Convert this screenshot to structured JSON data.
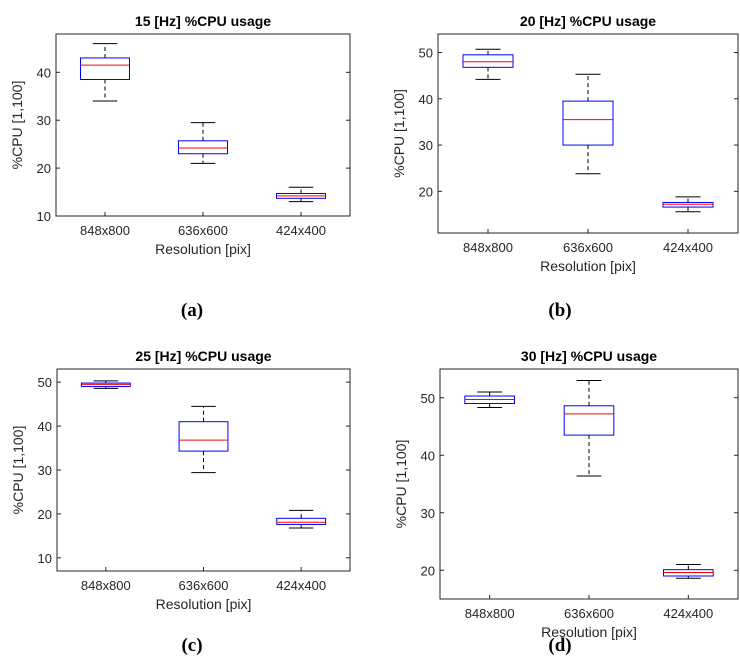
{
  "figure": {
    "colors": {
      "box": "#0000ff",
      "median": "#ff0000",
      "whisker": "#000000",
      "axis": "#262626"
    }
  },
  "chart_data": [
    {
      "type": "box",
      "panel_label": "(a)",
      "title": "15 [Hz] %CPU usage",
      "xlabel": "Resolution [pix]",
      "ylabel": "%CPU [1,100]",
      "ylim": [
        10,
        48
      ],
      "yticks": [
        10,
        20,
        30,
        40
      ],
      "categories": [
        "848x800",
        "636x600",
        "424x400"
      ],
      "boxes": [
        {
          "whisker_low": 34,
          "q1": 38.5,
          "median": 41.5,
          "q3": 43,
          "whisker_high": 46
        },
        {
          "whisker_low": 21,
          "q1": 23,
          "median": 24.2,
          "q3": 25.7,
          "whisker_high": 29.5
        },
        {
          "whisker_low": 13,
          "q1": 13.7,
          "median": 14.2,
          "q3": 14.7,
          "whisker_high": 16
        }
      ]
    },
    {
      "type": "box",
      "panel_label": "(b)",
      "title": "20 [Hz] %CPU usage",
      "xlabel": "Resolution [pix]",
      "ylabel": "%CPU [1,100]",
      "ylim": [
        11,
        54
      ],
      "yticks": [
        20,
        30,
        40,
        50
      ],
      "categories": [
        "848x800",
        "636x600",
        "424x400"
      ],
      "boxes": [
        {
          "whisker_low": 44.2,
          "q1": 46.8,
          "median": 48,
          "q3": 49.5,
          "whisker_high": 50.7
        },
        {
          "whisker_low": 23.8,
          "q1": 30,
          "median": 35.5,
          "q3": 39.5,
          "whisker_high": 45.3
        },
        {
          "whisker_low": 15.6,
          "q1": 16.6,
          "median": 17.2,
          "q3": 17.6,
          "whisker_high": 18.8
        }
      ]
    },
    {
      "type": "box",
      "panel_label": "(c)",
      "title": "25 [Hz] %CPU usage",
      "xlabel": "Resolution [pix]",
      "ylabel": "%CPU [1,100]",
      "ylim": [
        7,
        53
      ],
      "yticks": [
        10,
        20,
        30,
        40,
        50
      ],
      "categories": [
        "848x800",
        "636x600",
        "424x400"
      ],
      "boxes": [
        {
          "whisker_low": 48.6,
          "q1": 49,
          "median": 49.5,
          "q3": 49.8,
          "whisker_high": 50.3
        },
        {
          "whisker_low": 29.4,
          "q1": 34.3,
          "median": 36.8,
          "q3": 41,
          "whisker_high": 44.5
        },
        {
          "whisker_low": 16.8,
          "q1": 17.6,
          "median": 18.1,
          "q3": 19,
          "whisker_high": 20.8
        }
      ]
    },
    {
      "type": "box",
      "panel_label": "(d)",
      "title": "30 [Hz] %CPU usage",
      "xlabel": "Resolution [pix]",
      "ylabel": "%CPU [1,100]",
      "ylim": [
        15,
        55
      ],
      "yticks": [
        20,
        30,
        40,
        50
      ],
      "categories": [
        "848x800",
        "636x600",
        "424x400"
      ],
      "boxes": [
        {
          "whisker_low": 48.3,
          "q1": 49,
          "median": 49.7,
          "q3": 50.3,
          "whisker_high": 51
        },
        {
          "whisker_low": 36.4,
          "q1": 43.5,
          "median": 47.2,
          "q3": 48.6,
          "whisker_high": 53
        },
        {
          "whisker_low": 18.6,
          "q1": 19,
          "median": 19.6,
          "q3": 20.1,
          "whisker_high": 21
        }
      ]
    }
  ]
}
